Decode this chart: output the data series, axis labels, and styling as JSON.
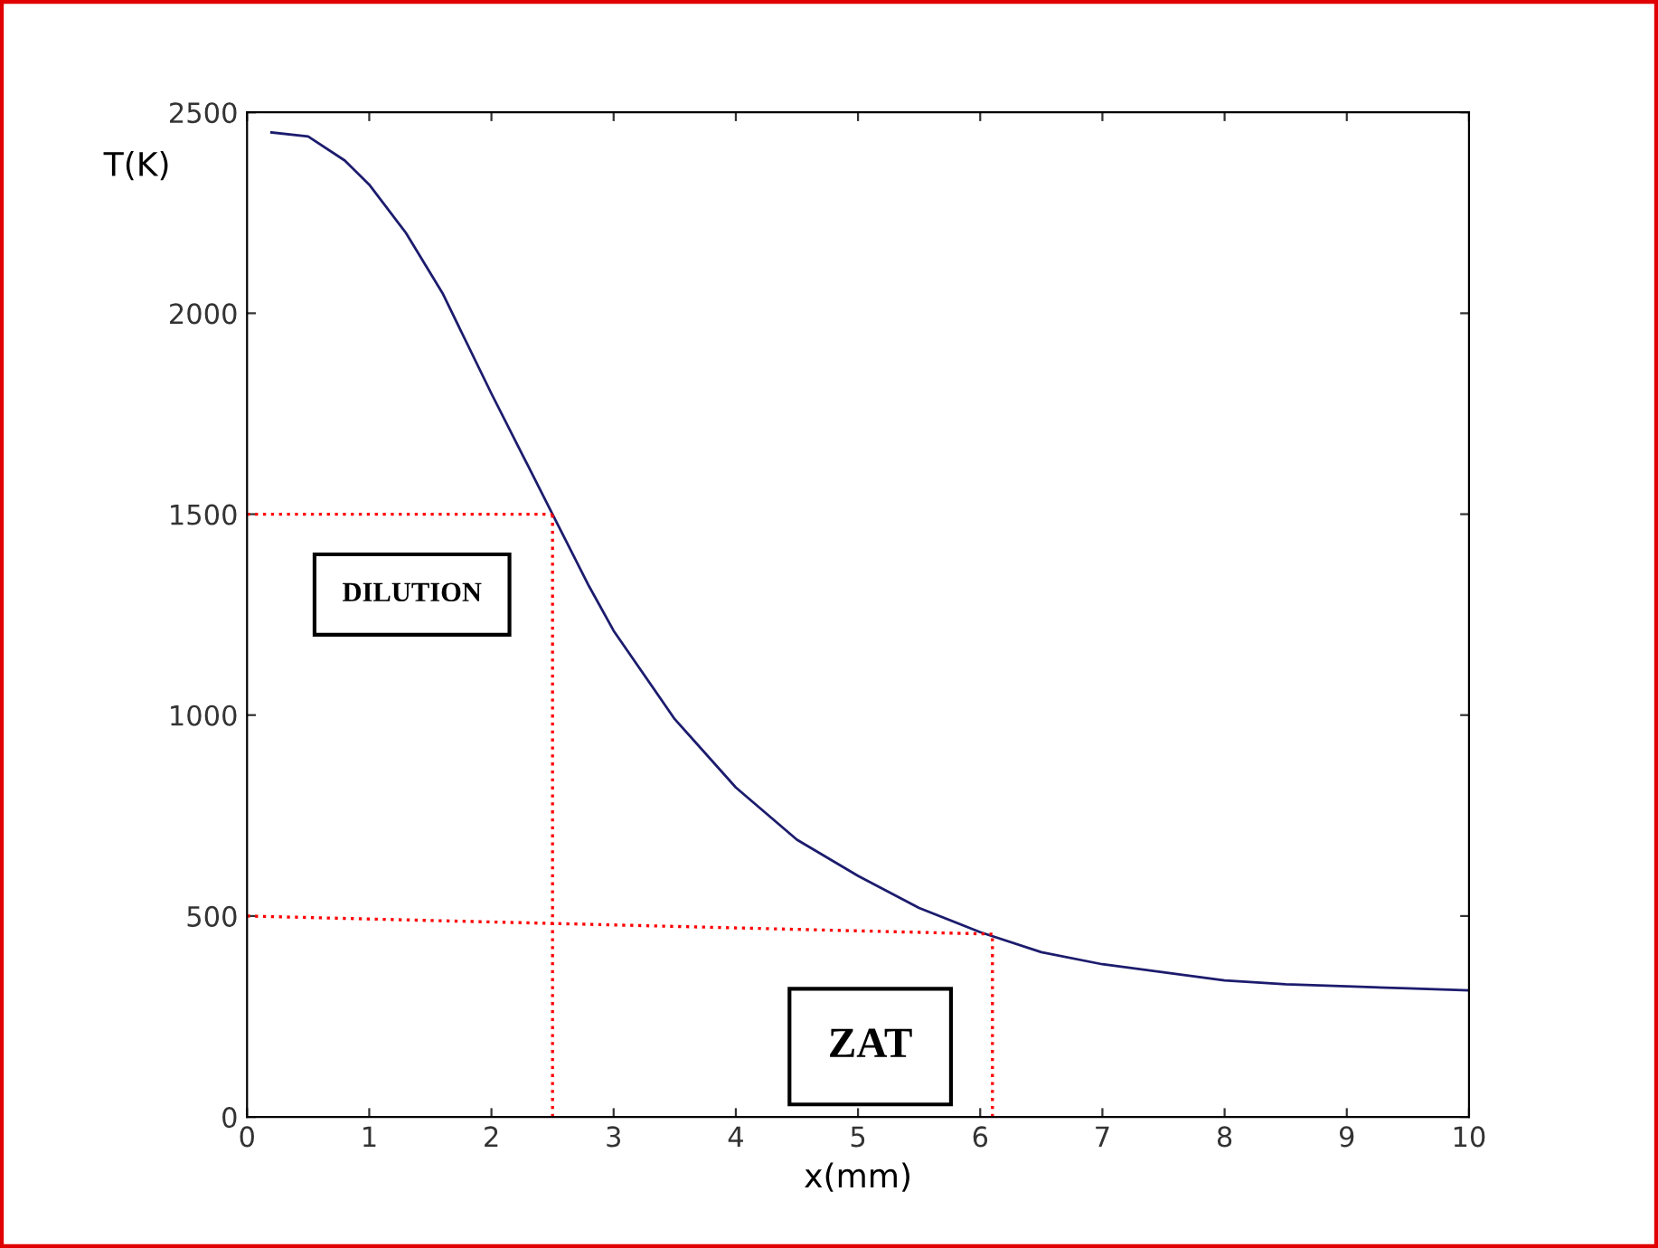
{
  "chart_data": {
    "type": "line",
    "xlabel": "x(mm)",
    "ylabel": "T(K)",
    "annotations": [
      "DILUTION",
      "ZAT"
    ],
    "xlim": [
      0,
      10
    ],
    "ylim": [
      0,
      2500
    ],
    "xticks": [
      0,
      1,
      2,
      3,
      4,
      5,
      6,
      7,
      8,
      9,
      10
    ],
    "yticks": [
      0,
      500,
      1000,
      1500,
      2000,
      2500
    ],
    "grid": false,
    "marker": "none",
    "line_style": "solid",
    "series": [
      {
        "color": "#1c1c6e",
        "x": [
          0.2,
          0.5,
          0.8,
          1.0,
          1.3,
          1.6,
          2.0,
          2.3,
          2.5,
          2.8,
          3.0,
          3.5,
          4.0,
          4.5,
          5.0,
          5.5,
          6.0,
          6.5,
          7.0,
          7.5,
          8.0,
          8.5,
          9.0,
          9.5,
          10.0
        ],
        "values": [
          2450,
          2440,
          2380,
          2320,
          2200,
          2050,
          1800,
          1620,
          1500,
          1320,
          1210,
          990,
          820,
          690,
          600,
          520,
          460,
          410,
          380,
          360,
          340,
          330,
          325,
          320,
          315
        ]
      },
      {
        "color": "#ff0000",
        "line_style": "dotted",
        "x": [
          0,
          2.5
        ],
        "values": [
          1500,
          1500
        ]
      },
      {
        "color": "#ff0000",
        "line_style": "dotted",
        "x": [
          2.5,
          2.5
        ],
        "values": [
          0,
          1500
        ]
      },
      {
        "color": "#ff0000",
        "line_style": "dotted",
        "x": [
          0,
          6.1
        ],
        "values": [
          500,
          455
        ]
      },
      {
        "color": "#ff0000",
        "line_style": "dotted",
        "x": [
          6.1,
          6.1
        ],
        "values": [
          0,
          455
        ]
      }
    ]
  }
}
